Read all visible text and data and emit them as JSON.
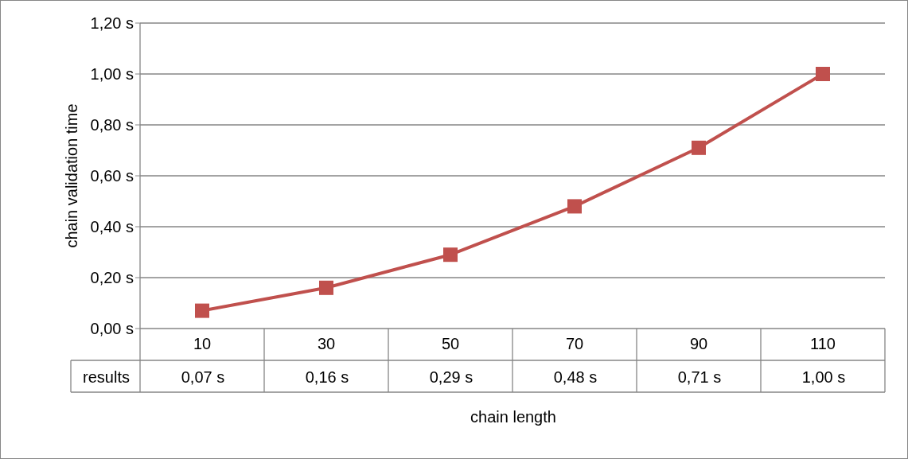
{
  "chart_data": {
    "type": "line",
    "xlabel": "chain length",
    "ylabel": "chain validation time",
    "categories": [
      "10",
      "30",
      "50",
      "70",
      "90",
      "110"
    ],
    "series": [
      {
        "name": "results",
        "color": "#c0504d",
        "values": [
          0.07,
          0.16,
          0.29,
          0.48,
          0.71,
          1.0
        ],
        "value_labels": [
          "0,07 s",
          "0,16 s",
          "0,29 s",
          "0,48 s",
          "0,71 s",
          "1,00 s"
        ]
      }
    ],
    "ylim": [
      0,
      1.2
    ],
    "yticks": [
      {
        "value": 0,
        "label": "0,00 s"
      },
      {
        "value": 0.2,
        "label": "0,20 s"
      },
      {
        "value": 0.4,
        "label": "0,40 s"
      },
      {
        "value": 0.6,
        "label": "0,60 s"
      },
      {
        "value": 0.8,
        "label": "0,80 s"
      },
      {
        "value": 1.0,
        "label": "1,00 s"
      },
      {
        "value": 1.2,
        "label": "1,20 s"
      }
    ],
    "grid": "y",
    "marker": "square",
    "line_style": "solid"
  }
}
